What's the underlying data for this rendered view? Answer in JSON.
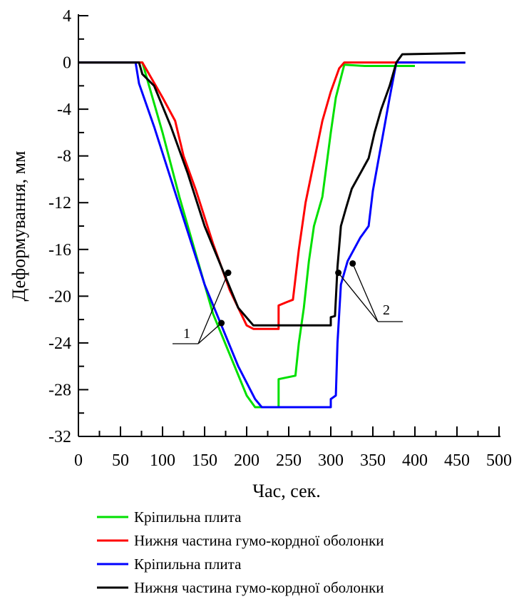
{
  "chart_data": {
    "type": "line",
    "title": "",
    "xlabel": "Час, сек.",
    "ylabel": "Деформування, мм",
    "xlim": [
      0,
      500
    ],
    "ylim": [
      -32,
      4
    ],
    "xticks": [
      0,
      50,
      100,
      150,
      200,
      250,
      300,
      350,
      400,
      450,
      500
    ],
    "yticks": [
      4,
      0,
      -4,
      -8,
      -12,
      -16,
      -20,
      -24,
      -28,
      -32
    ],
    "grid": false,
    "legend_position": "bottom",
    "series": [
      {
        "name": "Кріпильна плита",
        "color": "#00e000",
        "points": [
          [
            0,
            0
          ],
          [
            76,
            0
          ],
          [
            80,
            -1
          ],
          [
            100,
            -6
          ],
          [
            120,
            -11.5
          ],
          [
            140,
            -16.5
          ],
          [
            160,
            -21.5
          ],
          [
            180,
            -25
          ],
          [
            200,
            -28.5
          ],
          [
            210,
            -29.5
          ],
          [
            238,
            -29.5
          ],
          [
            238,
            -27.1
          ],
          [
            258,
            -26.8
          ],
          [
            262,
            -24
          ],
          [
            268,
            -21
          ],
          [
            274,
            -17
          ],
          [
            280,
            -14
          ],
          [
            290,
            -11.5
          ],
          [
            300,
            -6
          ],
          [
            306,
            -3
          ],
          [
            316,
            -0.2
          ],
          [
            340,
            -0.3
          ],
          [
            400,
            -0.3
          ]
        ]
      },
      {
        "name": "Нижня частина гумо-кордної оболонки",
        "color": "#ff0000",
        "points": [
          [
            0,
            0
          ],
          [
            76,
            0
          ],
          [
            80,
            -0.5
          ],
          [
            100,
            -3
          ],
          [
            115,
            -5
          ],
          [
            125,
            -8
          ],
          [
            140,
            -11
          ],
          [
            160,
            -15.5
          ],
          [
            180,
            -19.5
          ],
          [
            200,
            -22.5
          ],
          [
            208,
            -22.8
          ],
          [
            238,
            -22.8
          ],
          [
            238,
            -20.8
          ],
          [
            248,
            -20.5
          ],
          [
            255,
            -20.3
          ],
          [
            262,
            -16
          ],
          [
            270,
            -12
          ],
          [
            280,
            -8.5
          ],
          [
            290,
            -5
          ],
          [
            300,
            -2.5
          ],
          [
            310,
            -0.5
          ],
          [
            316,
            0
          ],
          [
            400,
            0
          ]
        ]
      },
      {
        "name": "Кріпильна плита",
        "color": "#0000ff",
        "points": [
          [
            0,
            0
          ],
          [
            68,
            0
          ],
          [
            72,
            -1.8
          ],
          [
            90,
            -5.5
          ],
          [
            110,
            -10
          ],
          [
            130,
            -14.5
          ],
          [
            150,
            -19
          ],
          [
            170,
            -22.5
          ],
          [
            190,
            -26
          ],
          [
            210,
            -28.8
          ],
          [
            218,
            -29.5
          ],
          [
            300,
            -29.5
          ],
          [
            300,
            -28.8
          ],
          [
            306,
            -28.5
          ],
          [
            308,
            -24
          ],
          [
            312,
            -19
          ],
          [
            320,
            -17
          ],
          [
            335,
            -15
          ],
          [
            345,
            -14
          ],
          [
            350,
            -11
          ],
          [
            360,
            -7
          ],
          [
            370,
            -3
          ],
          [
            378,
            0
          ],
          [
            400,
            0
          ],
          [
            460,
            0
          ]
        ]
      },
      {
        "name": "Нижня частина гумо-кордної оболонки",
        "color": "#000000",
        "points": [
          [
            0,
            0
          ],
          [
            72,
            0
          ],
          [
            76,
            -1
          ],
          [
            90,
            -2
          ],
          [
            110,
            -5.5
          ],
          [
            130,
            -9.5
          ],
          [
            150,
            -14
          ],
          [
            170,
            -17.5
          ],
          [
            190,
            -21
          ],
          [
            208,
            -22.5
          ],
          [
            300,
            -22.5
          ],
          [
            300,
            -21.8
          ],
          [
            305,
            -21.7
          ],
          [
            308,
            -17.5
          ],
          [
            312,
            -14
          ],
          [
            318,
            -12.5
          ],
          [
            325,
            -10.8
          ],
          [
            335,
            -9.5
          ],
          [
            345,
            -8.2
          ],
          [
            352,
            -6
          ],
          [
            360,
            -4
          ],
          [
            370,
            -2
          ],
          [
            378,
            0
          ],
          [
            385,
            0.7
          ],
          [
            460,
            0.8
          ]
        ]
      }
    ],
    "annotations": [
      {
        "text": "1",
        "markers": [
          [
            178,
            -18
          ],
          [
            170,
            -22.3
          ]
        ]
      },
      {
        "text": "2",
        "markers": [
          [
            309,
            -18
          ],
          [
            326,
            -17.2
          ]
        ]
      }
    ]
  }
}
